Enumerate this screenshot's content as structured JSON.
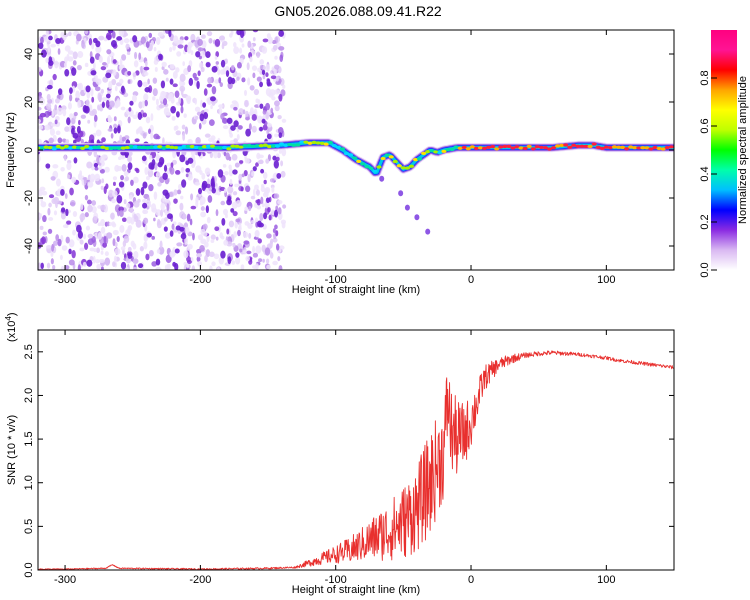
{
  "title": "GN05.2026.088.09.41.R22",
  "chart_data": [
    {
      "type": "heatmap",
      "name": "spectrogram",
      "xlabel": "Height of straight line (km)",
      "ylabel": "Frequency (Hz)",
      "xlim": [
        -320,
        150
      ],
      "ylim": [
        -50,
        50
      ],
      "x_ticks": [
        -300,
        -200,
        -100,
        0,
        100
      ],
      "x_tick_labels": [
        "-300",
        "-200",
        "-100",
        "0",
        "100"
      ],
      "y_ticks": [
        -40,
        -20,
        0,
        20,
        40
      ],
      "y_tick_labels": [
        "-40",
        "-20",
        "0",
        "20",
        "40"
      ],
      "ridge": {
        "x": [
          -320,
          -280,
          -240,
          -200,
          -180,
          -140,
          -120,
          -105,
          -95,
          -85,
          -75,
          -70,
          -65,
          -60,
          -55,
          -50,
          -45,
          -40,
          -35,
          -30,
          -25,
          -20,
          -10,
          0,
          20,
          60,
          80,
          90,
          100,
          120,
          150
        ],
        "y": [
          1,
          1,
          1,
          1,
          1,
          2,
          3,
          3,
          0,
          -4,
          -7,
          -10,
          -3,
          -2,
          -5,
          -8,
          -7,
          -4,
          -2,
          0,
          -1,
          0,
          1,
          1,
          1,
          1,
          2,
          2,
          1,
          1,
          1
        ]
      },
      "colorbar": {
        "label": "Normalized spectral amplitude",
        "range": [
          0,
          1
        ],
        "ticks": [
          0,
          0.2,
          0.4,
          0.6,
          0.8
        ],
        "tick_labels": [
          "0.0",
          "0.2",
          "0.4",
          "0.6",
          "0.8"
        ],
        "colors": [
          "#ffffff",
          "#d9b8f2",
          "#8a2be2",
          "#0000ff",
          "#00bfff",
          "#00ffaa",
          "#00ff00",
          "#bfff00",
          "#ffff00",
          "#ffa500",
          "#ff0000",
          "#ff1493",
          "#ff0080"
        ]
      }
    },
    {
      "type": "line",
      "name": "snr",
      "xlabel": "Height of straight line (km)",
      "ylabel": "SNR (10 * v/v)",
      "exponent_label": "(x10",
      "exponent_power": "4",
      "exponent_close": ")",
      "xlim": [
        -320,
        150
      ],
      "ylim": [
        0,
        2.75
      ],
      "x_ticks": [
        -300,
        -200,
        -100,
        0,
        100
      ],
      "x_tick_labels": [
        "-300",
        "-200",
        "-100",
        "0",
        "100"
      ],
      "y_ticks": [
        0,
        0.5,
        1,
        1.5,
        2,
        2.5
      ],
      "y_tick_labels": [
        "0.0",
        "0.5",
        "1.0",
        "1.5",
        "2.0",
        "2.5"
      ],
      "color": "#e8302e",
      "x": [
        -320,
        -300,
        -270,
        -265,
        -260,
        -200,
        -150,
        -130,
        -120,
        -110,
        -100,
        -90,
        -80,
        -70,
        -60,
        -50,
        -40,
        -35,
        -30,
        -25,
        -20,
        -17,
        -15,
        -10,
        -5,
        0,
        5,
        10,
        20,
        30,
        40,
        50,
        60,
        70,
        80,
        90,
        100,
        110,
        120,
        130,
        140,
        150
      ],
      "y": [
        0.01,
        0.01,
        0.02,
        0.06,
        0.02,
        0.01,
        0.02,
        0.03,
        0.08,
        0.13,
        0.18,
        0.22,
        0.3,
        0.38,
        0.45,
        0.55,
        0.7,
        0.85,
        1.0,
        1.2,
        1.35,
        2.0,
        1.6,
        1.5,
        1.55,
        1.7,
        1.95,
        2.2,
        2.35,
        2.42,
        2.46,
        2.48,
        2.49,
        2.48,
        2.47,
        2.45,
        2.43,
        2.4,
        2.38,
        2.36,
        2.34,
        2.32
      ],
      "noise_envelope": {
        "x": [
          -320,
          -130,
          -120,
          -100,
          -80,
          -60,
          -40,
          -30,
          -20,
          -10,
          0,
          10,
          20,
          40,
          80,
          150
        ],
        "amplitude": [
          0.005,
          0.01,
          0.04,
          0.1,
          0.2,
          0.35,
          0.5,
          0.6,
          0.55,
          0.45,
          0.3,
          0.15,
          0.08,
          0.03,
          0.02,
          0.02
        ]
      }
    }
  ]
}
